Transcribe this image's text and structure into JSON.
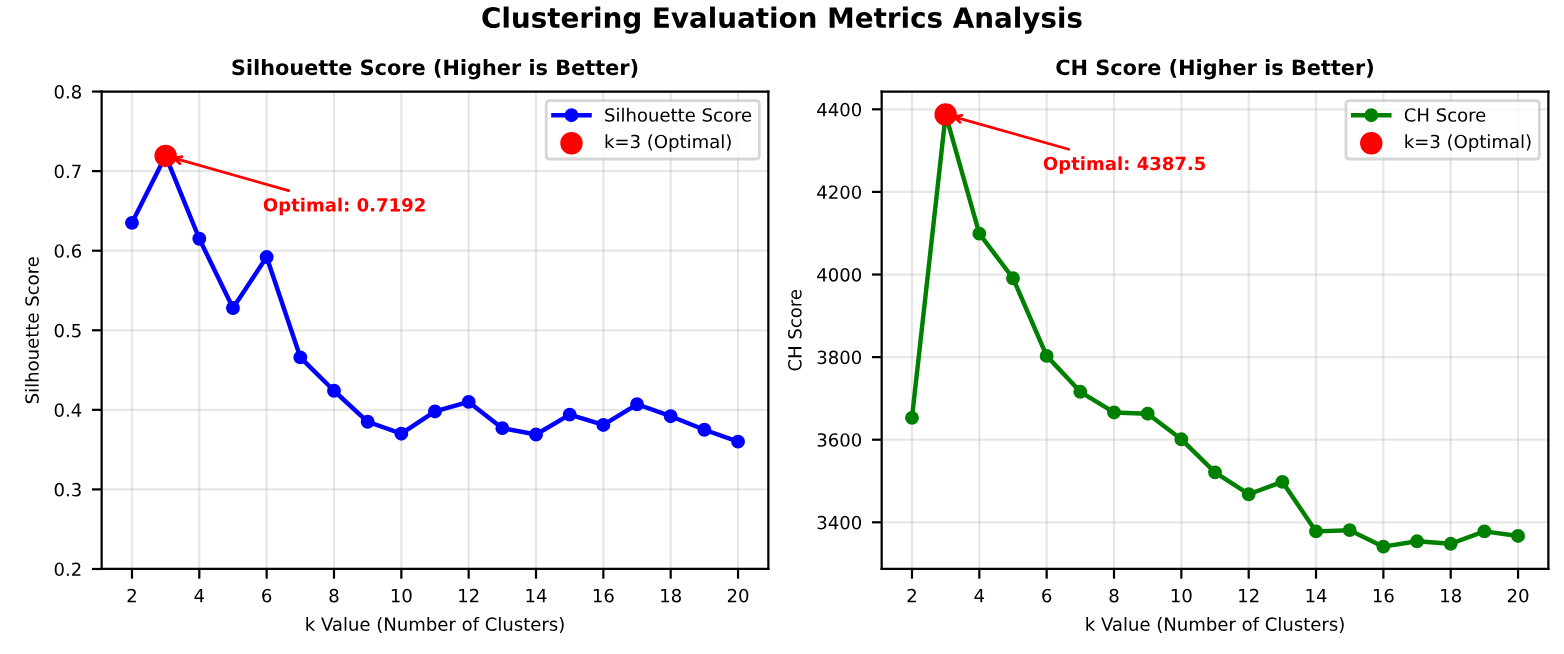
{
  "chart_data": [
    {
      "type": "line",
      "title": "Silhouette Score (Higher is Better)",
      "xlabel": "k Value (Number of Clusters)",
      "ylabel": "Silhouette Score",
      "annotations": [
        "Clustering Evaluation Metrics Analysis",
        {
          "text": "Optimal: 0.7192",
          "x": 3,
          "y": 0.7192
        }
      ],
      "x": [
        2,
        3,
        4,
        5,
        6,
        7,
        8,
        9,
        10,
        11,
        12,
        13,
        14,
        15,
        16,
        17,
        18,
        19,
        20
      ],
      "series": [
        {
          "name": "Silhouette Score",
          "color": "#0000ff",
          "marker": "circle",
          "values": [
            0.635,
            0.7192,
            0.615,
            0.528,
            0.592,
            0.466,
            0.424,
            0.385,
            0.37,
            0.398,
            0.41,
            0.377,
            0.369,
            0.394,
            0.381,
            0.407,
            0.392,
            0.375,
            0.36
          ]
        },
        {
          "name": "k=3 (Optimal)",
          "type": "scatter",
          "color": "#ff0000",
          "marker": "circle",
          "x": [
            3
          ],
          "values": [
            0.7192
          ]
        }
      ],
      "xlim": [
        1.1,
        20.9
      ],
      "ylim": [
        0.2,
        0.8
      ],
      "xticks": [
        2,
        4,
        6,
        8,
        10,
        12,
        14,
        16,
        18,
        20
      ],
      "yticks": [
        0.2,
        0.3,
        0.4,
        0.5,
        0.6,
        0.7,
        0.8
      ],
      "grid": true,
      "legend": "top right"
    },
    {
      "type": "line",
      "title": "CH Score (Higher is Better)",
      "xlabel": "k Value (Number of Clusters)",
      "ylabel": "CH Score",
      "annotations": [
        {
          "text": "Optimal: 4387.5",
          "x": 3,
          "y": 4387.5
        }
      ],
      "x": [
        2,
        3,
        4,
        5,
        6,
        7,
        8,
        9,
        10,
        11,
        12,
        13,
        14,
        15,
        16,
        17,
        18,
        19,
        20
      ],
      "series": [
        {
          "name": "CH Score",
          "color": "#008000",
          "marker": "circle",
          "values": [
            3653,
            4387.5,
            4099,
            3991,
            3803,
            3716,
            3666,
            3663,
            3601,
            3521,
            3468,
            3498,
            3378,
            3381,
            3341,
            3354,
            3348,
            3378,
            3367
          ]
        },
        {
          "name": "k=3 (Optimal)",
          "type": "scatter",
          "color": "#ff0000",
          "marker": "circle",
          "x": [
            3
          ],
          "values": [
            4387.5
          ]
        }
      ],
      "xlim": [
        1.1,
        20.9
      ],
      "ylim": [
        3287,
        4443
      ],
      "xticks": [
        2,
        4,
        6,
        8,
        10,
        12,
        14,
        16,
        18,
        20
      ],
      "yticks": [
        3400,
        3600,
        3800,
        4000,
        4200,
        4400
      ],
      "grid": true,
      "legend": "top right"
    }
  ]
}
